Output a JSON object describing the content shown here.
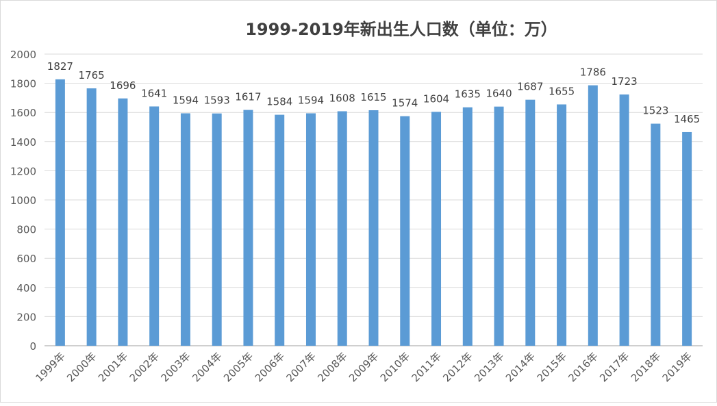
{
  "chart_data": {
    "type": "bar",
    "title": "1999-2019年新出生人口数（单位：万）",
    "xlabel": "",
    "ylabel": "",
    "ylim": [
      0,
      2000
    ],
    "yticks": [
      0,
      200,
      400,
      600,
      800,
      1000,
      1200,
      1400,
      1600,
      1800,
      2000
    ],
    "grid": true,
    "legend": "none",
    "bar_color": "#5b9bd5",
    "categories": [
      "1999年",
      "2000年",
      "2001年",
      "2002年",
      "2003年",
      "2004年",
      "2005年",
      "2006年",
      "2007年",
      "2008年",
      "2009年",
      "2010年",
      "2011年",
      "2012年",
      "2013年",
      "2014年",
      "2015年",
      "2016年",
      "2017年",
      "2018年",
      "2019年"
    ],
    "values": [
      1827,
      1765,
      1696,
      1641,
      1594,
      1593,
      1617,
      1584,
      1594,
      1608,
      1615,
      1574,
      1604,
      1635,
      1640,
      1687,
      1655,
      1786,
      1723,
      1523,
      1465
    ]
  }
}
